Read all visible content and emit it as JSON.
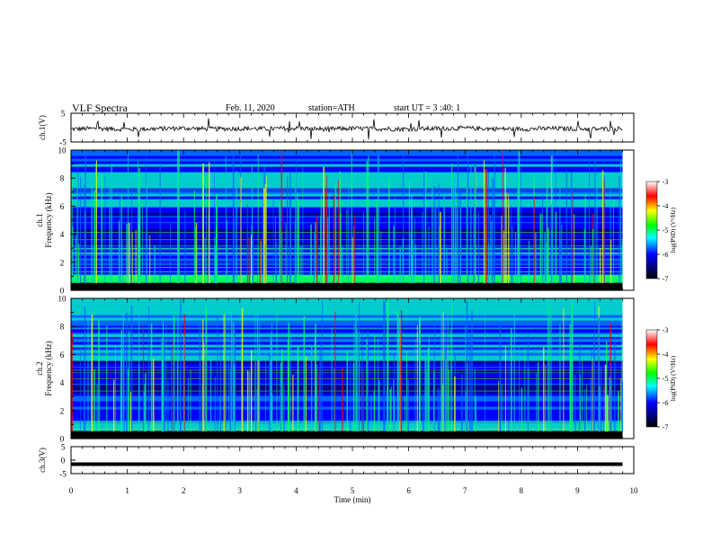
{
  "header": {
    "title": "VLF  Spectra",
    "date": "Feb. 11, 2020",
    "station": "station=ATH",
    "start": "start  UT  =   3  :40: 1"
  },
  "colors": {
    "colormap": [
      "#000000",
      "#000080",
      "#0000ff",
      "#00ffff",
      "#00ff00",
      "#ffff00",
      "#ff0000",
      "#ffffff"
    ],
    "trace": "#000000",
    "axis": "#000000",
    "background": "#ffffff"
  },
  "chart_data": [
    {
      "type": "line",
      "name": "ch1-waveform",
      "ylabel": "ch.1(V)",
      "ylim": [
        -5,
        5
      ],
      "yticks": [
        "5",
        "-5"
      ],
      "xlim": [
        0,
        10
      ],
      "x": [
        0,
        0.5,
        1,
        1.5,
        2,
        2.5,
        3,
        3.5,
        4,
        4.5,
        5,
        5.5,
        6,
        6.5,
        7,
        7.5,
        8,
        8.5,
        9,
        9.5,
        9.8
      ],
      "y": [
        -0.5,
        -0.3,
        -0.6,
        -0.4,
        -0.2,
        -0.5,
        -0.3,
        -0.4,
        -0.2,
        -0.5,
        -0.3,
        -0.4,
        -0.5,
        -0.3,
        -0.2,
        -0.4,
        -0.5,
        -0.3,
        -0.4,
        -0.5,
        -0.3
      ]
    },
    {
      "type": "heatmap",
      "name": "ch1-spectrogram",
      "ylabel": "ch.1",
      "ylabel2": "Frequency  (kHz)",
      "ylim": [
        0,
        10
      ],
      "yticks": [
        "0",
        "2",
        "4",
        "6",
        "8",
        "10"
      ],
      "xlim": [
        0,
        10
      ],
      "data_end_min": 9.8,
      "colorbar": {
        "label": "log(PSD) (V²/Hz)",
        "range": [
          -7,
          -3
        ],
        "ticks": [
          "-3",
          "-4",
          "-5",
          "-6",
          "-7"
        ]
      }
    },
    {
      "type": "heatmap",
      "name": "ch2-spectrogram",
      "ylabel": "ch.2",
      "ylabel2": "Frequency  (kHz)",
      "ylim": [
        0,
        10
      ],
      "yticks": [
        "0",
        "2",
        "4",
        "6",
        "8",
        "10"
      ],
      "xlim": [
        0,
        10
      ],
      "data_end_min": 9.8,
      "colorbar": {
        "label": "log(PSD) (V²/Hz)",
        "range": [
          -7,
          -3
        ],
        "ticks": [
          "-3",
          "-4",
          "-5",
          "-6",
          "-7"
        ]
      }
    },
    {
      "type": "line",
      "name": "ch3-waveform",
      "ylabel": "ch.3(V)",
      "ylim": [
        -5,
        5
      ],
      "yticks": [
        "5",
        "0",
        "-5"
      ],
      "xlim": [
        0,
        10
      ],
      "x": [
        0,
        9.8
      ],
      "y": [
        -1.5,
        -1.5
      ],
      "xlabel": "Time  (min)",
      "xticks": [
        "0",
        "1",
        "2",
        "3",
        "4",
        "5",
        "6",
        "7",
        "8",
        "9",
        "10"
      ]
    }
  ]
}
